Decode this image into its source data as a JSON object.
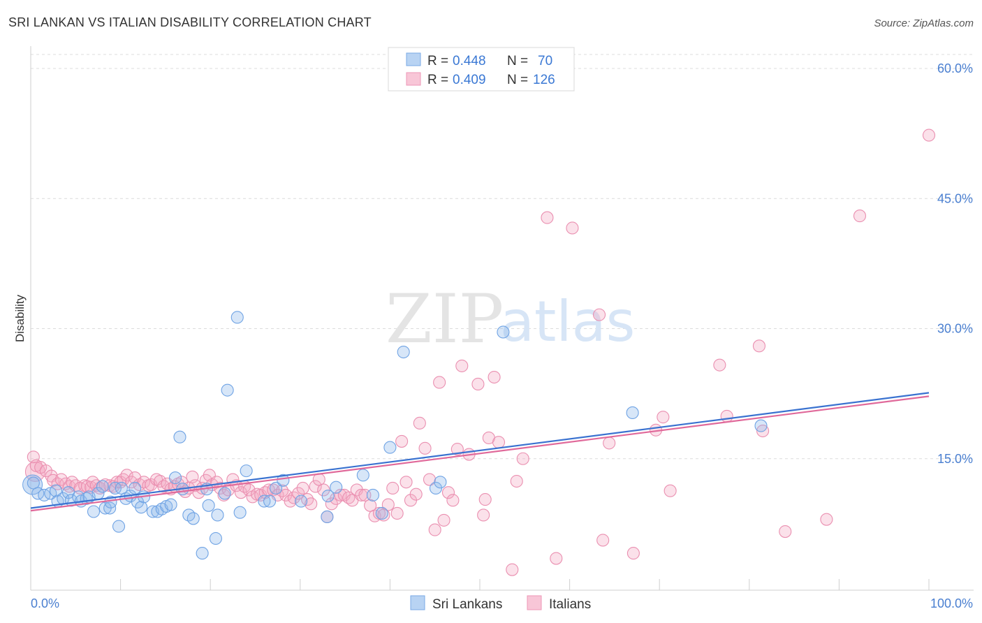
{
  "header": {
    "title": "SRI LANKAN VS ITALIAN DISABILITY CORRELATION CHART",
    "source": "Source: ZipAtlas.com"
  },
  "watermark": {
    "zip": "ZIP",
    "atlas": "atlas"
  },
  "chart_data": {
    "type": "scatter",
    "title": "SRI LANKAN VS ITALIAN DISABILITY CORRELATION CHART",
    "xlabel": "",
    "ylabel": "Disability",
    "xlim": [
      0,
      100
    ],
    "ylim": [
      0,
      63
    ],
    "x_tick_labels": [
      "0.0%",
      "100.0%"
    ],
    "y_ticks": [
      15,
      30,
      45,
      60
    ],
    "y_tick_labels": [
      "15.0%",
      "30.0%",
      "45.0%",
      "60.0%"
    ],
    "grid": true,
    "legend_placement": "top-center",
    "stats": [
      {
        "r_label": "R =",
        "r": "0.448",
        "n_label": "N =",
        "n": "70"
      },
      {
        "r_label": "R =",
        "r": "0.409",
        "n_label": "N =",
        "n": "126"
      }
    ],
    "series": [
      {
        "name": "Sri Lankans",
        "color": "#8db8ec",
        "line_color": "#3a72d0",
        "trend": [
          [
            0,
            9.3
          ],
          [
            100,
            22.6
          ]
        ],
        "points": [
          [
            0.3,
            12.2
          ],
          [
            0.8,
            11.0
          ],
          [
            1.5,
            10.8
          ],
          [
            2.2,
            11.0
          ],
          [
            2.8,
            11.3
          ],
          [
            3.0,
            10.1
          ],
          [
            3.6,
            10.4
          ],
          [
            4.2,
            11.1
          ],
          [
            4.5,
            10.2
          ],
          [
            5.3,
            10.6
          ],
          [
            5.6,
            10.1
          ],
          [
            6.2,
            10.4
          ],
          [
            6.5,
            10.6
          ],
          [
            7.0,
            8.9
          ],
          [
            7.5,
            11.0
          ],
          [
            8.0,
            11.8
          ],
          [
            8.3,
            9.3
          ],
          [
            8.8,
            9.3
          ],
          [
            8.9,
            10.0
          ],
          [
            9.4,
            11.6
          ],
          [
            9.8,
            7.2
          ],
          [
            10.1,
            11.6
          ],
          [
            10.6,
            10.4
          ],
          [
            11.1,
            10.7
          ],
          [
            11.6,
            11.6
          ],
          [
            11.9,
            10.0
          ],
          [
            12.3,
            9.4
          ],
          [
            12.6,
            10.6
          ],
          [
            13.6,
            8.9
          ],
          [
            14.1,
            8.9
          ],
          [
            14.6,
            9.2
          ],
          [
            15.1,
            9.5
          ],
          [
            15.6,
            9.7
          ],
          [
            16.1,
            12.8
          ],
          [
            16.6,
            17.5
          ],
          [
            16.9,
            11.5
          ],
          [
            17.6,
            8.5
          ],
          [
            18.1,
            8.1
          ],
          [
            19.1,
            4.1
          ],
          [
            19.6,
            11.5
          ],
          [
            19.8,
            9.6
          ],
          [
            20.6,
            5.8
          ],
          [
            20.8,
            8.5
          ],
          [
            21.6,
            11.0
          ],
          [
            21.9,
            22.9
          ],
          [
            23.0,
            31.3
          ],
          [
            23.3,
            8.8
          ],
          [
            24.0,
            13.6
          ],
          [
            26.0,
            10.1
          ],
          [
            26.6,
            10.1
          ],
          [
            27.3,
            11.6
          ],
          [
            28.1,
            12.5
          ],
          [
            30.1,
            10.1
          ],
          [
            33.0,
            8.3
          ],
          [
            33.1,
            10.7
          ],
          [
            34.0,
            11.7
          ],
          [
            37.0,
            13.1
          ],
          [
            38.1,
            10.8
          ],
          [
            39.1,
            8.7
          ],
          [
            40.0,
            16.3
          ],
          [
            41.5,
            27.3
          ],
          [
            45.1,
            11.6
          ],
          [
            45.6,
            12.3
          ],
          [
            52.6,
            29.6
          ],
          [
            67.0,
            20.3
          ],
          [
            81.3,
            18.8
          ]
        ],
        "large_points": [
          [
            0.2,
            12.0
          ]
        ]
      },
      {
        "name": "Italians",
        "color": "#f3a9c4",
        "line_color": "#e0699a",
        "trend": [
          [
            0,
            9.0
          ],
          [
            100,
            22.2
          ]
        ],
        "points": [
          [
            0.3,
            15.2
          ],
          [
            0.6,
            14.2
          ],
          [
            1.1,
            14.0
          ],
          [
            1.7,
            13.6
          ],
          [
            2.3,
            13.0
          ],
          [
            2.5,
            12.5
          ],
          [
            3.0,
            12.1
          ],
          [
            3.4,
            12.6
          ],
          [
            3.9,
            12.1
          ],
          [
            4.3,
            11.8
          ],
          [
            4.6,
            12.3
          ],
          [
            5.0,
            11.9
          ],
          [
            5.5,
            11.6
          ],
          [
            6.0,
            11.9
          ],
          [
            6.3,
            11.8
          ],
          [
            6.7,
            11.7
          ],
          [
            6.9,
            12.3
          ],
          [
            7.3,
            11.9
          ],
          [
            7.7,
            11.6
          ],
          [
            8.3,
            12.0
          ],
          [
            8.8,
            11.9
          ],
          [
            9.2,
            11.8
          ],
          [
            9.6,
            12.3
          ],
          [
            10.0,
            12.3
          ],
          [
            10.3,
            12.6
          ],
          [
            10.7,
            13.1
          ],
          [
            11.2,
            12.3
          ],
          [
            11.6,
            12.8
          ],
          [
            12.1,
            12.0
          ],
          [
            12.6,
            12.3
          ],
          [
            13.1,
            11.9
          ],
          [
            13.4,
            12.0
          ],
          [
            14.0,
            12.6
          ],
          [
            14.4,
            12.4
          ],
          [
            14.8,
            11.8
          ],
          [
            15.2,
            12.1
          ],
          [
            15.6,
            11.5
          ],
          [
            16.0,
            11.8
          ],
          [
            16.4,
            12.1
          ],
          [
            16.8,
            12.3
          ],
          [
            17.2,
            11.2
          ],
          [
            17.6,
            11.6
          ],
          [
            18.0,
            12.9
          ],
          [
            18.3,
            11.9
          ],
          [
            18.7,
            11.1
          ],
          [
            19.1,
            11.6
          ],
          [
            19.5,
            12.5
          ],
          [
            19.9,
            13.1
          ],
          [
            20.2,
            12.0
          ],
          [
            20.7,
            12.3
          ],
          [
            21.1,
            11.6
          ],
          [
            21.5,
            10.8
          ],
          [
            22.0,
            11.4
          ],
          [
            22.5,
            12.6
          ],
          [
            22.9,
            11.9
          ],
          [
            23.4,
            11.1
          ],
          [
            23.8,
            11.8
          ],
          [
            24.3,
            11.4
          ],
          [
            24.7,
            10.6
          ],
          [
            25.2,
            10.9
          ],
          [
            25.6,
            10.8
          ],
          [
            26.1,
            11.1
          ],
          [
            26.5,
            11.4
          ],
          [
            27.0,
            11.4
          ],
          [
            27.5,
            10.8
          ],
          [
            28.0,
            11.3
          ],
          [
            28.4,
            10.8
          ],
          [
            28.9,
            10.1
          ],
          [
            29.3,
            10.5
          ],
          [
            29.8,
            11.0
          ],
          [
            30.3,
            11.6
          ],
          [
            30.8,
            10.3
          ],
          [
            31.2,
            9.8
          ],
          [
            31.7,
            11.8
          ],
          [
            32.1,
            12.6
          ],
          [
            32.6,
            11.4
          ],
          [
            33.0,
            8.3
          ],
          [
            33.5,
            9.8
          ],
          [
            34.0,
            10.4
          ],
          [
            34.5,
            10.8
          ],
          [
            34.9,
            10.8
          ],
          [
            35.4,
            10.5
          ],
          [
            35.8,
            10.2
          ],
          [
            36.3,
            11.4
          ],
          [
            36.8,
            10.8
          ],
          [
            37.2,
            10.8
          ],
          [
            37.8,
            9.6
          ],
          [
            38.3,
            8.4
          ],
          [
            38.8,
            8.7
          ],
          [
            39.3,
            8.5
          ],
          [
            39.8,
            9.7
          ],
          [
            40.3,
            11.6
          ],
          [
            40.8,
            8.7
          ],
          [
            41.3,
            17.0
          ],
          [
            41.8,
            12.3
          ],
          [
            42.3,
            10.2
          ],
          [
            42.9,
            10.9
          ],
          [
            43.3,
            19.1
          ],
          [
            43.9,
            16.2
          ],
          [
            44.4,
            12.6
          ],
          [
            45.0,
            6.8
          ],
          [
            45.5,
            23.8
          ],
          [
            46.0,
            7.9
          ],
          [
            46.5,
            11.1
          ],
          [
            47.0,
            10.2
          ],
          [
            47.5,
            16.1
          ],
          [
            48.0,
            25.7
          ],
          [
            48.8,
            15.5
          ],
          [
            49.8,
            23.6
          ],
          [
            50.4,
            8.5
          ],
          [
            50.6,
            10.3
          ],
          [
            51.0,
            17.4
          ],
          [
            51.6,
            24.4
          ],
          [
            52.1,
            16.9
          ],
          [
            53.6,
            2.2
          ],
          [
            54.1,
            12.4
          ],
          [
            54.8,
            15.0
          ],
          [
            57.5,
            42.8
          ],
          [
            58.5,
            3.5
          ],
          [
            60.3,
            41.6
          ],
          [
            63.3,
            31.6
          ],
          [
            63.7,
            5.6
          ],
          [
            64.4,
            16.8
          ],
          [
            67.1,
            4.1
          ],
          [
            69.6,
            18.3
          ],
          [
            70.4,
            19.8
          ],
          [
            71.2,
            11.3
          ],
          [
            76.7,
            25.8
          ],
          [
            77.5,
            19.9
          ],
          [
            81.1,
            28.0
          ],
          [
            81.5,
            18.2
          ],
          [
            84.0,
            6.6
          ],
          [
            88.6,
            8.0
          ],
          [
            92.3,
            43.0
          ],
          [
            100.0,
            52.3
          ]
        ],
        "large_points": [
          [
            0.5,
            13.5
          ]
        ]
      }
    ]
  }
}
